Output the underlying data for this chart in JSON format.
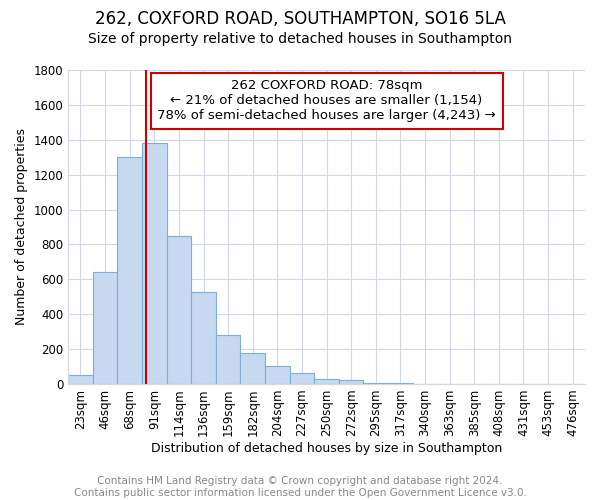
{
  "title": "262, COXFORD ROAD, SOUTHAMPTON, SO16 5LA",
  "subtitle": "Size of property relative to detached houses in Southampton",
  "xlabel": "Distribution of detached houses by size in Southampton",
  "ylabel": "Number of detached properties",
  "footnote": "Contains HM Land Registry data © Crown copyright and database right 2024.\nContains public sector information licensed under the Open Government Licence v3.0.",
  "bins": [
    "23sqm",
    "46sqm",
    "68sqm",
    "91sqm",
    "114sqm",
    "136sqm",
    "159sqm",
    "182sqm",
    "204sqm",
    "227sqm",
    "250sqm",
    "272sqm",
    "295sqm",
    "317sqm",
    "340sqm",
    "363sqm",
    "385sqm",
    "408sqm",
    "431sqm",
    "453sqm",
    "476sqm"
  ],
  "values": [
    50,
    640,
    1300,
    1380,
    850,
    525,
    280,
    180,
    105,
    65,
    30,
    25,
    5,
    5,
    0,
    0,
    0,
    0,
    0,
    0,
    0
  ],
  "bar_color": "#c6d9f0",
  "bar_edge_color": "#7bafd4",
  "vline_x": 2.65,
  "vline_color": "#cc0000",
  "annotation_text_line1": "262 COXFORD ROAD: 78sqm",
  "annotation_text_line2": "← 21% of detached houses are smaller (1,154)",
  "annotation_text_line3": "78% of semi-detached houses are larger (4,243) →",
  "ylim": [
    0,
    1800
  ],
  "yticks": [
    0,
    200,
    400,
    600,
    800,
    1000,
    1200,
    1400,
    1600,
    1800
  ],
  "title_fontsize": 12,
  "subtitle_fontsize": 10,
  "annotation_fontsize": 9.5,
  "axis_label_fontsize": 9,
  "ylabel_fontsize": 9,
  "tick_fontsize": 8.5,
  "footnote_fontsize": 7.5,
  "grid_color": "#d0d8e8",
  "background_color": "#ffffff"
}
